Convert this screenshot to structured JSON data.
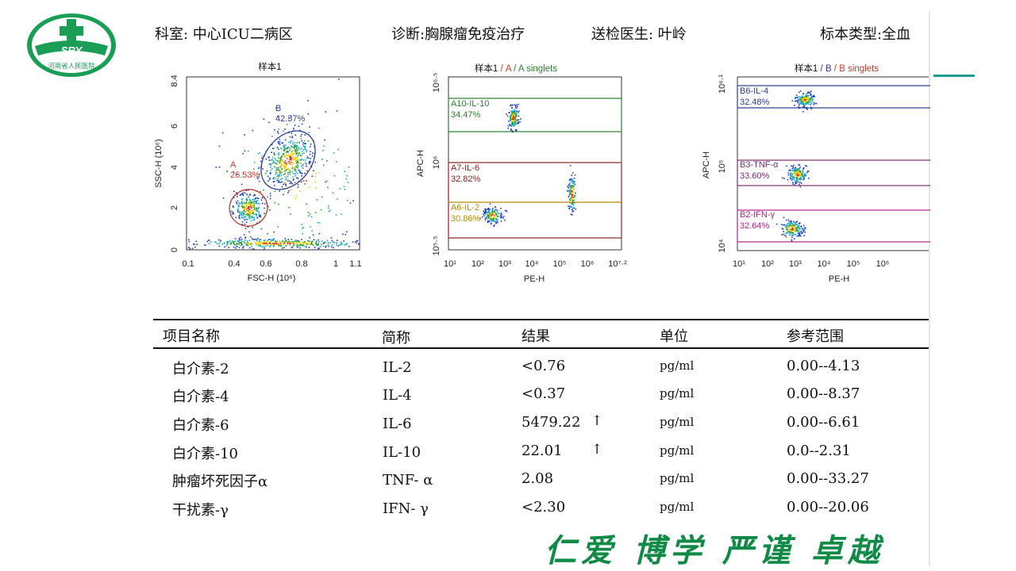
{
  "logo": {
    "abbr": "SRY",
    "name": "河南省人民医院",
    "icon": "medical-cross-icon",
    "color": "#1a9e55"
  },
  "header": {
    "department": "科室: 中心ICU二病区",
    "diagnosis": "诊断:胸腺瘤免疫治疗",
    "doctor": "送检医生: 叶岭",
    "specimen": "标本类型:全血"
  },
  "plots": {
    "p1": {
      "title": "样本1",
      "xlabel": "FSC-H (10⁶)",
      "ylabel": "SSC-H (10⁶)",
      "xticks": [
        "0.1",
        "0.4",
        "0.6",
        "0.8",
        "1",
        "1.1"
      ],
      "yticks": [
        "0",
        "2",
        "4",
        "6",
        "8.4"
      ],
      "gates": {
        "A": {
          "name": "A",
          "pct": "26.53%",
          "color": "#c0392b"
        },
        "B": {
          "name": "B",
          "pct": "42.37%",
          "color": "#2c3e8f"
        }
      }
    },
    "p2": {
      "title": "样本1",
      "title_sep1": " / ",
      "title_a": "A",
      "title_sep2": " / ",
      "title_b": "A singlets",
      "xlabel": "PE-H",
      "ylabel": "APC-H",
      "xticks": [
        "10¹",
        "10²",
        "10³",
        "10⁴",
        "10⁵",
        "10⁶",
        "10⁷·²"
      ],
      "yticks": [
        "10⁵·⁵",
        "10⁶",
        "10⁶·⁵"
      ],
      "gates": {
        "il10": {
          "name": "A10-IL-10",
          "pct": "34.47%",
          "color": "#2e7d32"
        },
        "il6": {
          "name": "A7-IL-6",
          "pct": "32.82%",
          "color": "#8b2323"
        },
        "il2": {
          "name": "A6-IL-2",
          "pct": "30.86%",
          "color": "#b8860b"
        }
      }
    },
    "p3": {
      "title": "样本1",
      "title_sep1": " / ",
      "title_a": "B",
      "title_sep2": " / ",
      "title_b": "B singlets",
      "xlabel": "PE-H",
      "ylabel": "APC-H",
      "xticks": [
        "10¹",
        "10²",
        "10³",
        "10⁴",
        "10⁵",
        "10⁶"
      ],
      "yticks": [
        "10⁴",
        "10⁵",
        "10⁶·¹"
      ],
      "gates": {
        "il4": {
          "name": "B6-IL-4",
          "pct": "32.48%",
          "color": "#2c3e8f"
        },
        "tnf": {
          "name": "B3-TNF-α",
          "pct": "33.60%",
          "color": "#7d2e6e"
        },
        "ifn": {
          "name": "B2-IFN-γ",
          "pct": "32.64%",
          "color": "#b0208f"
        }
      }
    }
  },
  "table": {
    "headers": {
      "name": "项目名称",
      "abbr": "简称",
      "result": "结果",
      "unit": "单位",
      "ref": "参考范围"
    },
    "rows": [
      {
        "name": "白介素-2",
        "abbr": "IL-2",
        "result": "<0.76",
        "flag": "",
        "unit": "pg/ml",
        "ref": "0.00--4.13"
      },
      {
        "name": "白介素-4",
        "abbr": "IL-4",
        "result": "<0.37",
        "flag": "",
        "unit": "pg/ml",
        "ref": "0.00--8.37"
      },
      {
        "name": "白介素-6",
        "abbr": "IL-6",
        "result": "5479.22",
        "flag": "↑",
        "unit": "pg/ml",
        "ref": "0.00--6.61"
      },
      {
        "name": "白介素-10",
        "abbr": "IL-10",
        "result": "22.01",
        "flag": "↑",
        "unit": "pg/ml",
        "ref": "0.0--2.31"
      },
      {
        "name": "肿瘤坏死因子α",
        "abbr": "TNF- α",
        "result": "2.08",
        "flag": "",
        "unit": "pg/ml",
        "ref": "0.00--33.27"
      },
      {
        "name": "干扰素-γ",
        "abbr": "IFN- γ",
        "result": "<2.30",
        "flag": "",
        "unit": "pg/ml",
        "ref": "0.00--20.06"
      }
    ]
  },
  "motto": "仁爱 博学 严谨 卓越"
}
